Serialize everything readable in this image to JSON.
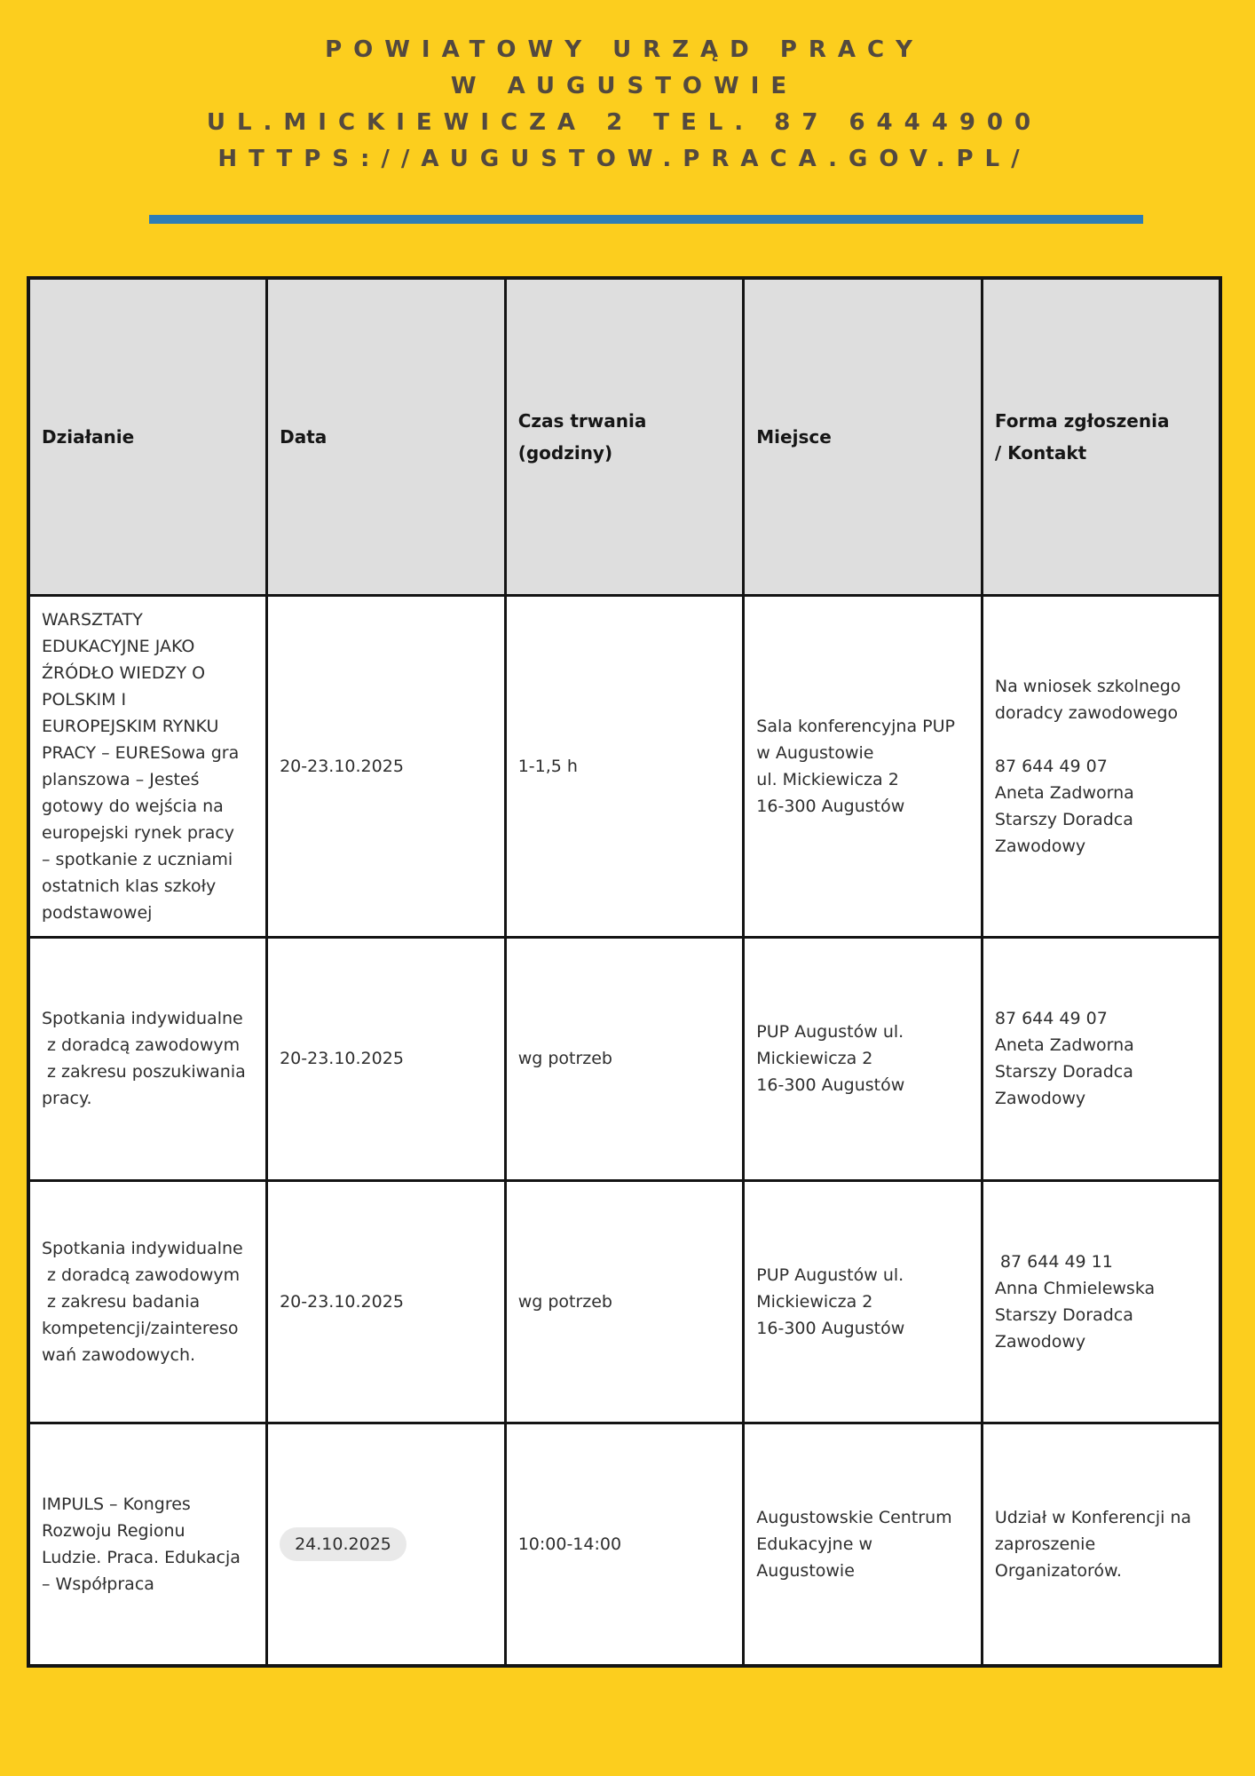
{
  "colors": {
    "bg": "#fcce1e",
    "accent": "#2d7db7",
    "headerText": "#53493f",
    "tableHeaderBg": "#dedede",
    "borderColor": "#141414",
    "bodyText": "#2e2e2e",
    "pillBg": "#e9e9e9"
  },
  "header": {
    "line1": "POWIATOWY URZĄD PRACY",
    "line2": "W AUGUSTOWIE",
    "line3": "UL.MICKIEWICZA 2 TEL. 87 6444900",
    "line4": "HTTPS://AUGUSTOW.PRACA.GOV.PL/"
  },
  "table": {
    "columns": {
      "c0": "Działanie",
      "c1": "Data",
      "c2": "Czas trwania\n(godziny)",
      "c3": "Miejsce",
      "c4": "Forma zgłoszenia\n/ Kontakt"
    },
    "rows": [
      {
        "dzialanie": "WARSZTATY\nEDUKACYJNE JAKO\nŹRÓDŁO WIEDZY O\nPOLSKIM I\nEUROPEJSKIM RYNKU\nPRACY – EURESowa gra\nplanszowa – Jesteś\ngotowy do wejścia na\neuropejski rynek pracy\n– spotkanie z uczniami\nostatnich klas szkoły\npodstawowej",
        "data": "20-23.10.2025",
        "czas": "1-1,5 h",
        "miejsce": "Sala konferencyjna PUP\nw Augustowie\nul. Mickiewicza 2\n16-300 Augustów",
        "forma": "Na wniosek szkolnego\ndoradcy zawodowego\n\n87 644 49 07\nAneta Zadworna\nStarszy Doradca\nZawodowy"
      },
      {
        "dzialanie": "Spotkania indywidualne\n z doradcą zawodowym\n z zakresu poszukiwania\npracy.",
        "data": "20-23.10.2025",
        "czas": "wg potrzeb",
        "miejsce": "PUP Augustów ul.\nMickiewicza 2\n16-300 Augustów",
        "forma": "87 644 49 07\nAneta Zadworna\nStarszy Doradca\nZawodowy"
      },
      {
        "dzialanie": "Spotkania indywidualne\n z doradcą zawodowym\n z zakresu badania\nkompetencji/zaintereso\nwań zawodowych.",
        "data": "20-23.10.2025",
        "czas": "wg potrzeb",
        "miejsce": "PUP Augustów ul.\nMickiewicza 2\n16-300 Augustów",
        "forma": " 87 644 49 11\nAnna Chmielewska\nStarszy Doradca\nZawodowy"
      },
      {
        "dzialanie": "IMPULS – Kongres\nRozwoju Regionu\nLudzie. Praca. Edukacja\n– Współpraca",
        "data": "24.10.2025",
        "czas": "10:00-14:00",
        "miejsce": "Augustowskie Centrum\nEdukacyjne w\nAugustowie",
        "forma": "Udział w Konferencji na\nzaproszenie\nOrganizatorów."
      }
    ]
  }
}
